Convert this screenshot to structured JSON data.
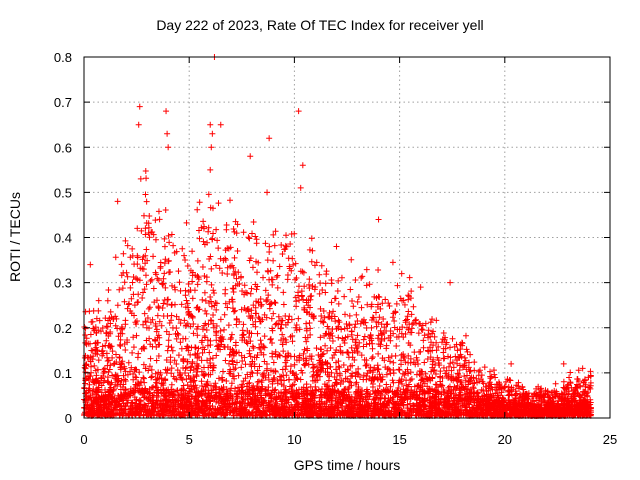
{
  "chart_data": {
    "type": "scatter",
    "title": "Day 222 of 2023, Rate Of TEC Index for receiver yell",
    "xlabel": "GPS time / hours",
    "ylabel": "ROTI / TECUs",
    "xlim": [
      0,
      25
    ],
    "ylim": [
      0,
      0.8
    ],
    "xticks": [
      0,
      5,
      10,
      15,
      20,
      25
    ],
    "yticks": [
      0,
      0.1,
      0.2,
      0.3,
      0.4,
      0.5,
      0.6,
      0.7,
      0.8
    ],
    "ytick_labels": [
      "0",
      "0.1",
      "0.2",
      "0.3",
      "0.4",
      "0.5",
      "0.6",
      "0.7",
      "0.8"
    ],
    "grid": true,
    "marker": "+",
    "color": "#ff0000",
    "envelope": {
      "x": [
        0,
        1,
        2,
        3,
        4,
        5,
        6,
        7,
        8,
        9,
        10,
        11,
        12,
        13,
        14,
        15,
        16,
        17,
        18,
        19,
        20,
        21,
        22,
        23,
        24
      ],
      "y": [
        0.22,
        0.26,
        0.35,
        0.5,
        0.4,
        0.38,
        0.45,
        0.42,
        0.4,
        0.38,
        0.4,
        0.35,
        0.32,
        0.3,
        0.3,
        0.3,
        0.22,
        0.2,
        0.18,
        0.1,
        0.08,
        0.06,
        0.06,
        0.08,
        0.09
      ]
    },
    "highlights": [
      {
        "x": 0.3,
        "y": 0.34
      },
      {
        "x": 0.7,
        "y": 0.26
      },
      {
        "x": 1.6,
        "y": 0.48
      },
      {
        "x": 2.65,
        "y": 0.69
      },
      {
        "x": 2.6,
        "y": 0.65
      },
      {
        "x": 2.7,
        "y": 0.53
      },
      {
        "x": 3.9,
        "y": 0.68
      },
      {
        "x": 3.95,
        "y": 0.63
      },
      {
        "x": 4.0,
        "y": 0.6
      },
      {
        "x": 6.0,
        "y": 0.65
      },
      {
        "x": 6.1,
        "y": 0.63
      },
      {
        "x": 6.2,
        "y": 0.8
      },
      {
        "x": 6.5,
        "y": 0.65
      },
      {
        "x": 6.05,
        "y": 0.6
      },
      {
        "x": 6.0,
        "y": 0.55
      },
      {
        "x": 7.9,
        "y": 0.58
      },
      {
        "x": 8.8,
        "y": 0.62
      },
      {
        "x": 8.7,
        "y": 0.5
      },
      {
        "x": 10.2,
        "y": 0.68
      },
      {
        "x": 10.4,
        "y": 0.56
      },
      {
        "x": 10.3,
        "y": 0.51
      },
      {
        "x": 12.0,
        "y": 0.38
      },
      {
        "x": 14.0,
        "y": 0.44
      },
      {
        "x": 15.1,
        "y": 0.32
      },
      {
        "x": 16.0,
        "y": 0.29
      },
      {
        "x": 17.4,
        "y": 0.3
      },
      {
        "x": 20.3,
        "y": 0.12
      },
      {
        "x": 22.8,
        "y": 0.12
      },
      {
        "x": 23.7,
        "y": 0.11
      }
    ]
  }
}
